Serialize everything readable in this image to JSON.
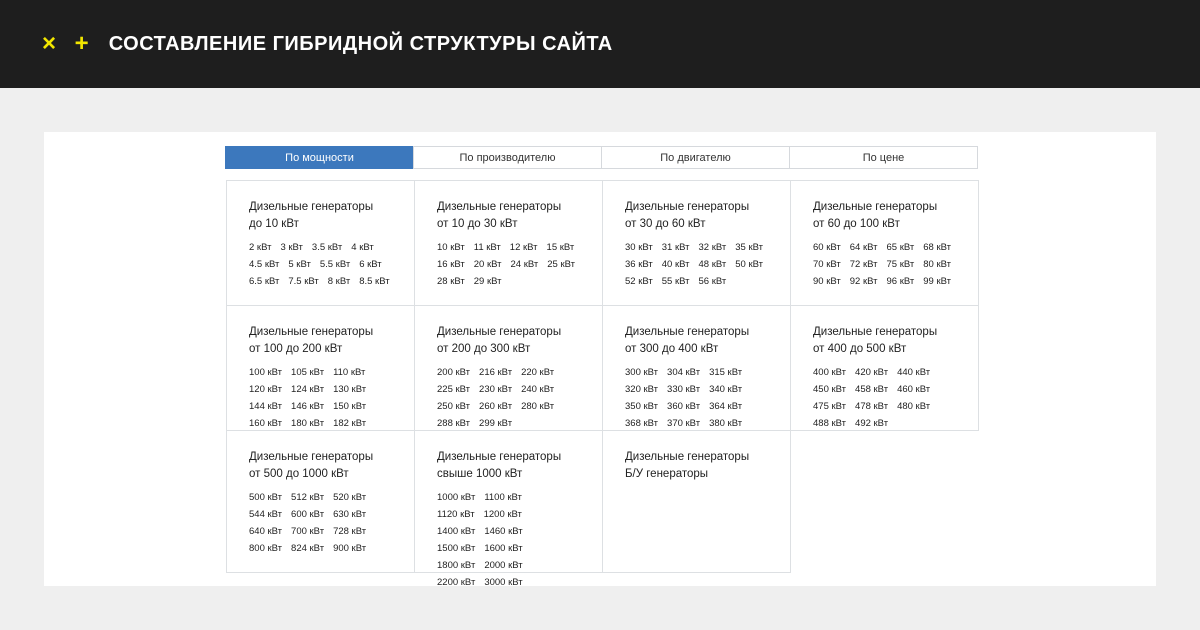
{
  "header": {
    "marks": "× +",
    "title": "СОСТАВЛЕНИЕ ГИБРИДНОЙ СТРУКТУРЫ САЙТА",
    "accent": "#f2e600"
  },
  "tabs": [
    {
      "label": "По мощности",
      "active": true
    },
    {
      "label": "По производителю"
    },
    {
      "label": "По двигателю"
    },
    {
      "label": "По цене"
    }
  ],
  "categories": [
    {
      "title": "Дизельные генераторы",
      "sub": "до 10 кВт",
      "items": [
        "2 кВт",
        "3 кВт",
        "3.5 кВт",
        "4 кВт",
        "4.5 кВт",
        "5 кВт",
        "5.5 кВт",
        "6 кВт",
        "6.5 кВт",
        "7.5 кВт",
        "8 кВт",
        "8.5 кВт"
      ]
    },
    {
      "title": "Дизельные генераторы",
      "sub": "от 10 до 30 кВт",
      "items": [
        "10 кВт",
        "11 кВт",
        "12 кВт",
        "15 кВт",
        "16 кВт",
        "20 кВт",
        "24 кВт",
        "25 кВт",
        "28 кВт",
        "29 кВт"
      ]
    },
    {
      "title": "Дизельные генераторы",
      "sub": "от 30 до 60 кВт",
      "items": [
        "30 кВт",
        "31 кВт",
        "32 кВт",
        "35 кВт",
        "36 кВт",
        "40 кВт",
        "48 кВт",
        "50 кВт",
        "52 кВт",
        "55 кВт",
        "56 кВт"
      ]
    },
    {
      "title": "Дизельные генераторы",
      "sub": "от 60 до 100 кВт",
      "items": [
        "60 кВт",
        "64 кВт",
        "65 кВт",
        "68 кВт",
        "70 кВт",
        "72 кВт",
        "75 кВт",
        "80 кВт",
        "90 кВт",
        "92 кВт",
        "96 кВт",
        "99 кВт"
      ]
    },
    {
      "title": "Дизельные генераторы",
      "sub": "от 100 до 200 кВт",
      "items": [
        "100 кВт",
        "105 кВт",
        "110 кВт",
        "120 кВт",
        "124 кВт",
        "130 кВт",
        "144 кВт",
        "146 кВт",
        "150 кВт",
        "160 кВт",
        "180 кВт",
        "182 кВт"
      ]
    },
    {
      "title": "Дизельные генераторы",
      "sub": "от 200 до 300 кВт",
      "items": [
        "200 кВт",
        "216 кВт",
        "220 кВт",
        "225 кВт",
        "230 кВт",
        "240 кВт",
        "250 кВт",
        "260 кВт",
        "280 кВт",
        "288 кВт",
        "299 кВт"
      ]
    },
    {
      "title": "Дизельные генераторы",
      "sub": "от 300 до 400 кВт",
      "items": [
        "300 кВт",
        "304 кВт",
        "315 кВт",
        "320 кВт",
        "330 кВт",
        "340 кВт",
        "350 кВт",
        "360 кВт",
        "364 кВт",
        "368 кВт",
        "370 кВт",
        "380 кВт"
      ]
    },
    {
      "title": "Дизельные генераторы",
      "sub": "от 400 до 500 кВт",
      "items": [
        "400 кВт",
        "420 кВт",
        "440 кВт",
        "450 кВт",
        "458 кВт",
        "460 кВт",
        "475 кВт",
        "478 кВт",
        "480 кВт",
        "488 кВт",
        "492 кВт"
      ]
    },
    {
      "title": "Дизельные генераторы",
      "sub": "от 500 до 1000 кВт",
      "items": [
        "500 кВт",
        "512 кВт",
        "520 кВт",
        "544 кВт",
        "600 кВт",
        "630 кВт",
        "640 кВт",
        "700 кВт",
        "728 кВт",
        "800 кВт",
        "824 кВт",
        "900 кВт"
      ]
    },
    {
      "title": "Дизельные генераторы",
      "sub": "свыше 1000 кВт",
      "cols": 3,
      "items": [
        "1000 кВт",
        "1100 кВт",
        "1120 кВт",
        "1200 кВт",
        "1400 кВт",
        "1460 кВт",
        "1500 кВт",
        "1600 кВт",
        "1800 кВт",
        "2000 кВт",
        "2200 кВт",
        "3000 кВт"
      ]
    },
    {
      "title": "Дизельные генераторы",
      "sub": "Б/У генераторы",
      "items": []
    }
  ]
}
